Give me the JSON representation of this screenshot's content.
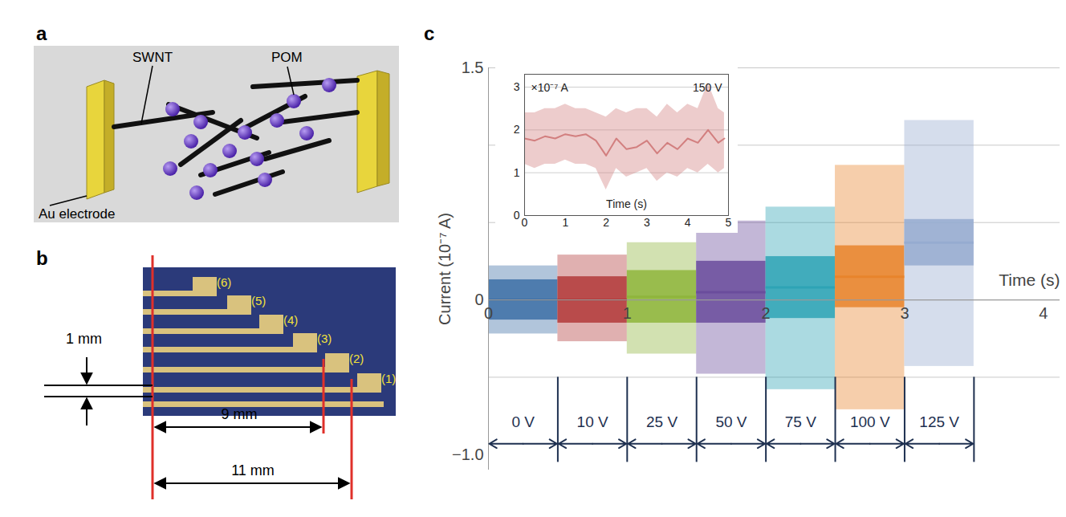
{
  "panels": {
    "a": {
      "label": "a",
      "swnt": "SWNT",
      "pom": "POM",
      "electrode": "Au electrode"
    },
    "b": {
      "label": "b",
      "electrodes": [
        "(1)",
        "(2)",
        "(3)",
        "(4)",
        "(5)",
        "(6)"
      ],
      "gap": "1 mm",
      "length_short": "9 mm",
      "length_long": "11 mm"
    },
    "c": {
      "label": "c"
    }
  },
  "chart_data": [
    {
      "type": "scatter",
      "x_label": "Time (s)",
      "y_label": "Current (10⁻⁷ A)",
      "xlim": [
        0,
        4.12
      ],
      "xticks": [
        0,
        1,
        2,
        3,
        4
      ],
      "ylim": [
        -1.1,
        1.5
      ],
      "yticks": [
        1.5,
        0,
        {
          "value": -1,
          "label": "−1.0"
        }
      ],
      "y_gridlines": [
        1.5,
        1,
        0.5,
        0,
        -0.5
      ],
      "grid": true,
      "segments": [
        {
          "label": "0 V",
          "x_start": 0,
          "x_end": 0.5,
          "center": 0,
          "lower": -0.22,
          "upper": 0.22,
          "core_lower": -0.13,
          "core_upper": 0.13,
          "color": "#3d6fa6"
        },
        {
          "label": "10 V",
          "x_start": 0.5,
          "x_end": 1,
          "center": 0,
          "lower": -0.27,
          "upper": 0.29,
          "core_lower": -0.15,
          "core_upper": 0.15,
          "color": "#b23a3a"
        },
        {
          "label": "25 V",
          "x_start": 1,
          "x_end": 1.5,
          "center": 0.02,
          "lower": -0.35,
          "upper": 0.37,
          "core_lower": -0.15,
          "core_upper": 0.19,
          "color": "#8fb53c"
        },
        {
          "label": "50 V",
          "x_start": 1.5,
          "x_end": 2,
          "center": 0.05,
          "lower": -0.48,
          "upper": 0.51,
          "core_lower": -0.15,
          "core_upper": 0.25,
          "color": "#6a4c9c"
        },
        {
          "label": "75 V",
          "x_start": 2,
          "x_end": 2.5,
          "center": 0.08,
          "lower": -0.58,
          "upper": 0.6,
          "core_lower": -0.12,
          "core_upper": 0.28,
          "color": "#2ea3b5"
        },
        {
          "label": "100 V",
          "x_start": 2.5,
          "x_end": 3,
          "center": 0.15,
          "lower": -0.71,
          "upper": 0.87,
          "core_lower": -0.05,
          "core_upper": 0.35,
          "color": "#e8842c"
        },
        {
          "label": "125 V",
          "x_start": 3,
          "x_end": 3.5,
          "center": 0.37,
          "lower": -0.43,
          "upper": 1.16,
          "core_lower": 0.22,
          "core_upper": 0.52,
          "color": "#96abd0"
        }
      ]
    },
    {
      "type": "line",
      "title": "150 V",
      "unit_label": "×10⁻⁷ A",
      "x_label": "Time (s)",
      "xlim": [
        0,
        5
      ],
      "xticks": [
        0,
        1,
        2,
        3,
        4,
        5
      ],
      "ylim": [
        0,
        3.3
      ],
      "yticks": [
        0,
        1,
        2,
        3
      ],
      "grid": true,
      "color": "#d27f7f",
      "x": [
        0,
        0.25,
        0.5,
        0.75,
        1,
        1.25,
        1.5,
        1.75,
        2,
        2.25,
        2.5,
        2.75,
        3,
        3.25,
        3.5,
        3.75,
        4,
        4.25,
        4.5,
        4.75,
        4.9
      ],
      "values": [
        1.8,
        1.75,
        1.85,
        1.8,
        1.9,
        1.85,
        1.9,
        1.75,
        1.4,
        1.8,
        1.55,
        1.6,
        1.75,
        1.45,
        1.7,
        1.55,
        1.8,
        1.7,
        2.0,
        1.7,
        1.8
      ],
      "lower": [
        1.2,
        1.1,
        1.2,
        1.2,
        1.3,
        1.2,
        1.2,
        1.1,
        0.6,
        1.1,
        0.9,
        1.0,
        1.1,
        0.8,
        1.0,
        0.9,
        1.1,
        1.0,
        1.2,
        1.0,
        1.1
      ],
      "upper": [
        2.4,
        2.4,
        2.5,
        2.5,
        2.6,
        2.5,
        2.5,
        2.4,
        2.3,
        2.5,
        2.4,
        2.5,
        2.5,
        2.3,
        2.6,
        2.4,
        2.6,
        2.5,
        3.1,
        2.5,
        2.4
      ]
    }
  ]
}
